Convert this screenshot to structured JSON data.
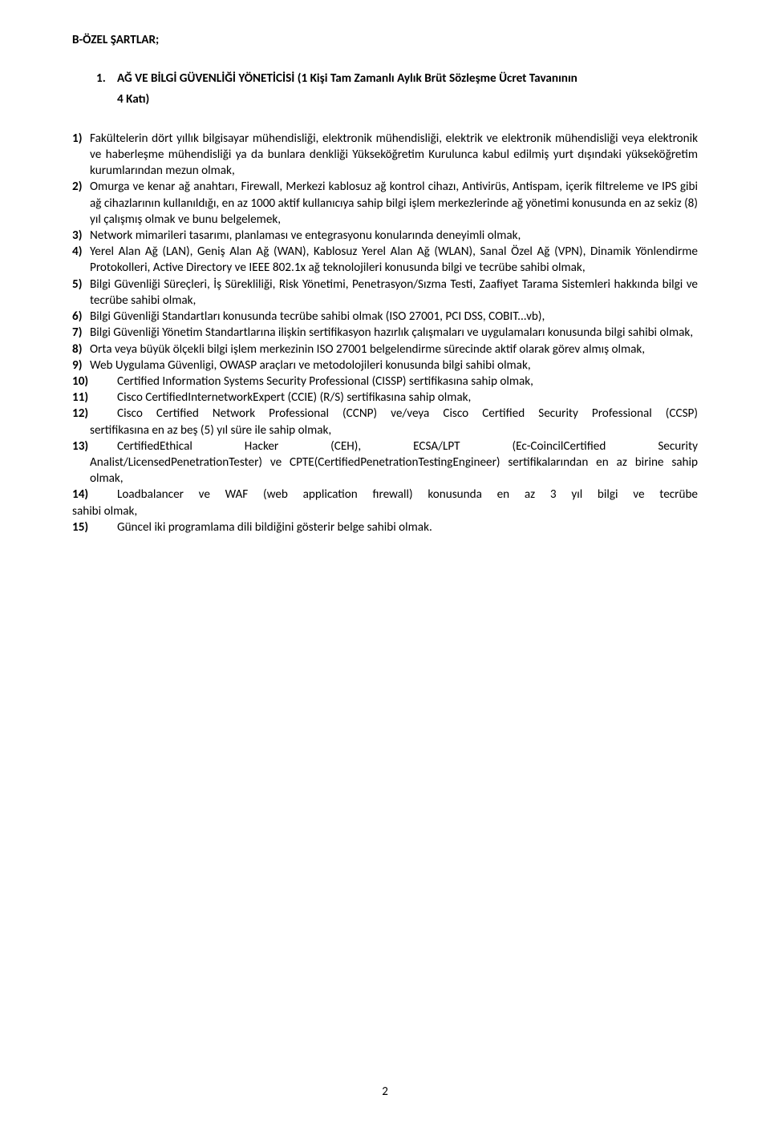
{
  "colors": {
    "text": "#000000",
    "background": "#ffffff"
  },
  "typography": {
    "font_family": "Calibri",
    "font_size_pt": 11,
    "line_height": 1.33,
    "heading_weight": 700,
    "body_weight": 400
  },
  "section_heading": "B-ÖZEL ŞARTLAR;",
  "position": {
    "number": "1.",
    "title_l1": "AĞ VE BİLGİ GÜVENLİĞİ YÖNETİCİSİ (1 Kişi Tam Zamanlı Aylık Brüt Sözleşme Ücret Tavanının",
    "title_l2": "4 Katı)"
  },
  "items": [
    {
      "m": "1)",
      "text": "Fakültelerin dört yıllık bilgisayar mühendisliği, elektronik mühendisliği, elektrik ve elektronik mühendisliği veya elektronik ve haberleşme mühendisliği ya da bunlara denkliği Yükseköğretim Kurulunca kabul edilmiş yurt dışındaki yükseköğretim kurumlarından mezun olmak,"
    },
    {
      "m": "2)",
      "text": "Omurga ve kenar ağ anahtarı, Firewall, Merkezi kablosuz ağ kontrol cihazı, Antivirüs, Antispam, içerik filtreleme ve IPS gibi ağ cihazlarının kullanıldığı, en az 1000 aktif kullanıcıya sahip bilgi işlem merkezlerinde ağ yönetimi konusunda en az sekiz (8) yıl çalışmış olmak ve bunu belgelemek,"
    },
    {
      "m": "3)",
      "text": "Network mimarileri tasarımı, planlaması ve entegrasyonu konularında deneyimli olmak,"
    },
    {
      "m": "4)",
      "text": "Yerel Alan Ağ (LAN), Geniş Alan Ağ (WAN), Kablosuz Yerel Alan Ağ (WLAN), Sanal Özel Ağ (VPN), Dinamik Yönlendirme Protokolleri, Active Directory ve IEEE 802.1x ağ teknolojileri konusunda bilgi ve tecrübe sahibi olmak,"
    },
    {
      "m": "5)",
      "text": "Bilgi Güvenliği Süreçleri, İş Sürekliliği, Risk Yönetimi, Penetrasyon/Sızma Testi, Zaafiyet Tarama Sistemleri hakkında bilgi ve tecrübe sahibi olmak,"
    },
    {
      "m": "6)",
      "text": "Bilgi Güvenliği Standartları konusunda tecrübe sahibi olmak (ISO 27001, PCI DSS, COBIT...vb),"
    },
    {
      "m": "7)",
      "text": "Bilgi Güvenliği Yönetim Standartlarına ilişkin sertifikasyon hazırlık çalışmaları ve uygulamaları konusunda bilgi sahibi olmak,"
    },
    {
      "m": "8)",
      "text": "Orta veya büyük ölçekli bilgi işlem merkezinin ISO 27001 belgelendirme sürecinde aktif olarak görev almış olmak,"
    },
    {
      "m": "9)",
      "text": "Web Uygulama Güvenligi, OWASP araçları ve metodolojileri konusunda bilgi sahibi olmak,"
    },
    {
      "m": "10)",
      "text": "Certified Information Systems Security Professional (CISSP) sertifikasına sahip olmak,",
      "wide": true
    },
    {
      "m": "11)",
      "text": "Cisco CertifiedInternetworkExpert (CCIE) (R/S) sertifikasına sahip olmak,",
      "wide": true
    },
    {
      "m": "12)",
      "text": "Cisco Certified Network Professional (CCNP) ve/veya Cisco Certified Security Professional (CCSP) sertifikasına en az beş (5) yıl süre ile sahip olmak,",
      "wide": true,
      "hang": true
    },
    {
      "m": "13)",
      "special": "ceh",
      "wide": true
    },
    {
      "m": "14)",
      "text": "Loadbalancer ve WAF (web application fırewall) konusunda en az 3 yıl bilgi ve tecrübe sahibi olmak,",
      "wide": true,
      "hang_zero": true
    },
    {
      "m": "15)",
      "text": "Güncel iki programlama dili bildiğini gösterir belge sahibi olmak.",
      "wide": true
    }
  ],
  "item13": {
    "line1_words": [
      "CertifiedEthical",
      "Hacker",
      "(CEH),",
      "ECSA/LPT",
      "(Ec-CoincilCertified",
      "Security"
    ],
    "rest": "Analist/LicensedPenetrationTester) ve CPTE(CertifiedPenetrationTestingEngineer) sertifikalarından en az birine sahip olmak,"
  },
  "page_number": "2"
}
